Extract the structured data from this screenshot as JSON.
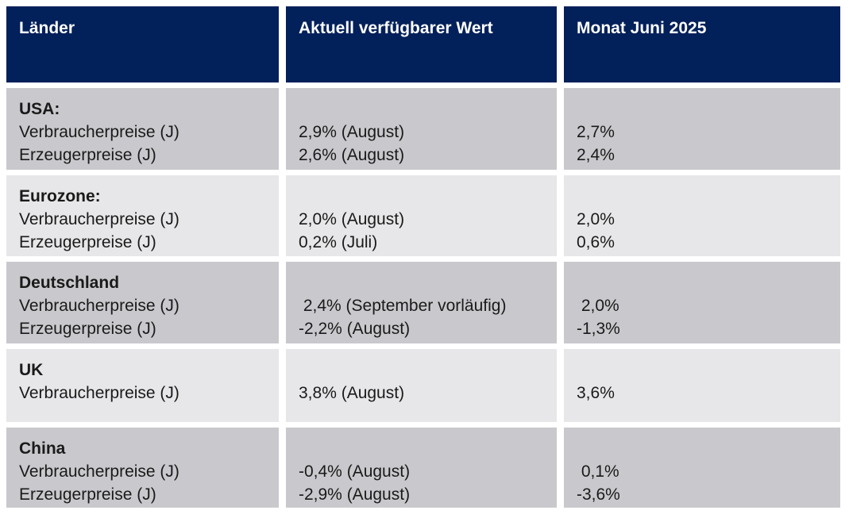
{
  "table": {
    "headers": [
      "Länder",
      "Aktuell verfügbarer Wert",
      "Monat Juni 2025"
    ],
    "rows": [
      {
        "country": "USA:",
        "labels": "Verbraucherpreise (J)\nErzeugerpreise (J)",
        "current": "2,9% (August)\n2,6% (August)",
        "month": "2,7%\n2,4%"
      },
      {
        "country": "Eurozone:",
        "labels": "Verbraucherpreise (J)\nErzeugerpreise (J)",
        "current": "2,0% (August)\n0,2% (Juli)",
        "month": "2,0%\n0,6%"
      },
      {
        "country": "Deutschland",
        "labels": "Verbraucherpreise (J)\nErzeugerpreise (J)",
        "current": " 2,4% (September vorläufig)\n-2,2% (August)",
        "month": " 2,0%\n-1,3%"
      },
      {
        "country": "UK",
        "labels": "Verbraucherpreise (J)",
        "current": "3,8% (August)",
        "month": "3,6%"
      },
      {
        "country": "China",
        "labels": "Verbraucherpreise (J)\nErzeugerpreise (J)",
        "current": "-0,4% (August)\n-2,9% (August)",
        "month": " 0,1%\n-3,6%"
      }
    ],
    "colors": {
      "header_bg": "#02205a",
      "header_text": "#ffffff",
      "row_dark": "#c9c9cd",
      "row_light": "#e7e7e9",
      "body_text": "#1a1a1a"
    }
  }
}
